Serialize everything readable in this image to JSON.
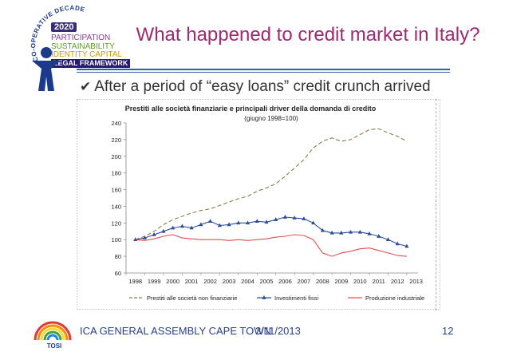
{
  "slide": {
    "title": "What happened to credit market in Italy?",
    "bullet": "After a period of “easy loans” credit crunch arrived",
    "bullet_icon": "check-icon"
  },
  "logo": {
    "ring_text": "CO-OPERATIVE DECADE",
    "year": "2020",
    "words": [
      "PARTICIPATION",
      "SUSTAINABILITY",
      "IDENTITY CAPITAL",
      "LEGAL FRAMEWORK"
    ]
  },
  "footer": {
    "event": "ICA GENERAL ASSEMBLY CAPE TOWN",
    "date": "3/11/2013",
    "page": "12",
    "logo_text": "TOSI"
  },
  "colors": {
    "title": "#a0286e",
    "footer": "#2b3f8a",
    "series_loans": "#8c7a4a",
    "series_invest": "#2f4e9a",
    "series_prod": "#e05050"
  },
  "chart_data": {
    "type": "line",
    "title": "Prestiti alle società finanziarie e principali driver della domanda di credito",
    "subtitle": "(giugno 1998=100)",
    "xlabel": "",
    "ylabel": "",
    "ylim": [
      60,
      240
    ],
    "yticks": [
      60,
      80,
      100,
      120,
      140,
      160,
      180,
      200,
      220,
      240
    ],
    "categories": [
      "1998",
      "1999",
      "2000",
      "2001",
      "2002",
      "2003",
      "2004",
      "2005",
      "2006",
      "2007",
      "2008",
      "2009",
      "2010",
      "2011",
      "2012",
      "2013"
    ],
    "legend_position": "bottom",
    "series": [
      {
        "name": "Prestiti alle società non finanziarie",
        "style": "dashed",
        "x": [
          1998.5,
          1999.0,
          1999.5,
          2000.0,
          2000.5,
          2001.0,
          2001.5,
          2002.0,
          2002.5,
          2003.0,
          2003.5,
          2004.0,
          2004.5,
          2005.0,
          2005.5,
          2006.0,
          2006.5,
          2007.0,
          2007.5,
          2008.0,
          2008.5,
          2009.0,
          2009.5,
          2010.0,
          2010.5,
          2011.0,
          2011.5,
          2012.0,
          2012.5,
          2013.0
        ],
        "values": [
          100,
          104,
          110,
          118,
          124,
          128,
          132,
          135,
          137,
          141,
          145,
          149,
          152,
          158,
          162,
          167,
          176,
          186,
          196,
          210,
          218,
          222,
          218,
          220,
          226,
          232,
          233,
          228,
          224,
          218
        ]
      },
      {
        "name": "Investimenti fissi",
        "style": "triangle-markers",
        "x": [
          1998.5,
          1999.0,
          1999.5,
          2000.0,
          2000.5,
          2001.0,
          2001.5,
          2002.0,
          2002.5,
          2003.0,
          2003.5,
          2004.0,
          2004.5,
          2005.0,
          2005.5,
          2006.0,
          2006.5,
          2007.0,
          2007.5,
          2008.0,
          2008.5,
          2009.0,
          2009.5,
          2010.0,
          2010.5,
          2011.0,
          2011.5,
          2012.0,
          2012.5,
          2013.0
        ],
        "values": [
          100,
          102,
          106,
          110,
          114,
          116,
          114,
          118,
          122,
          117,
          118,
          120,
          120,
          122,
          121,
          124,
          127,
          126,
          125,
          120,
          111,
          108,
          108,
          109,
          109,
          107,
          104,
          100,
          95,
          92
        ]
      },
      {
        "name": "Produzione industriale",
        "style": "solid",
        "x": [
          1998.5,
          1999.0,
          1999.5,
          2000.0,
          2000.5,
          2001.0,
          2001.5,
          2002.0,
          2002.5,
          2003.0,
          2003.5,
          2004.0,
          2004.5,
          2005.0,
          2005.5,
          2006.0,
          2006.5,
          2007.0,
          2007.5,
          2008.0,
          2008.5,
          2009.0,
          2009.5,
          2010.0,
          2010.5,
          2011.0,
          2011.5,
          2012.0,
          2012.5,
          2013.0
        ],
        "values": [
          100,
          99,
          101,
          104,
          106,
          102,
          101,
          100,
          100,
          100,
          99,
          100,
          99,
          100,
          101,
          103,
          104,
          106,
          105,
          100,
          84,
          80,
          84,
          86,
          89,
          90,
          87,
          84,
          81,
          80
        ]
      }
    ]
  }
}
